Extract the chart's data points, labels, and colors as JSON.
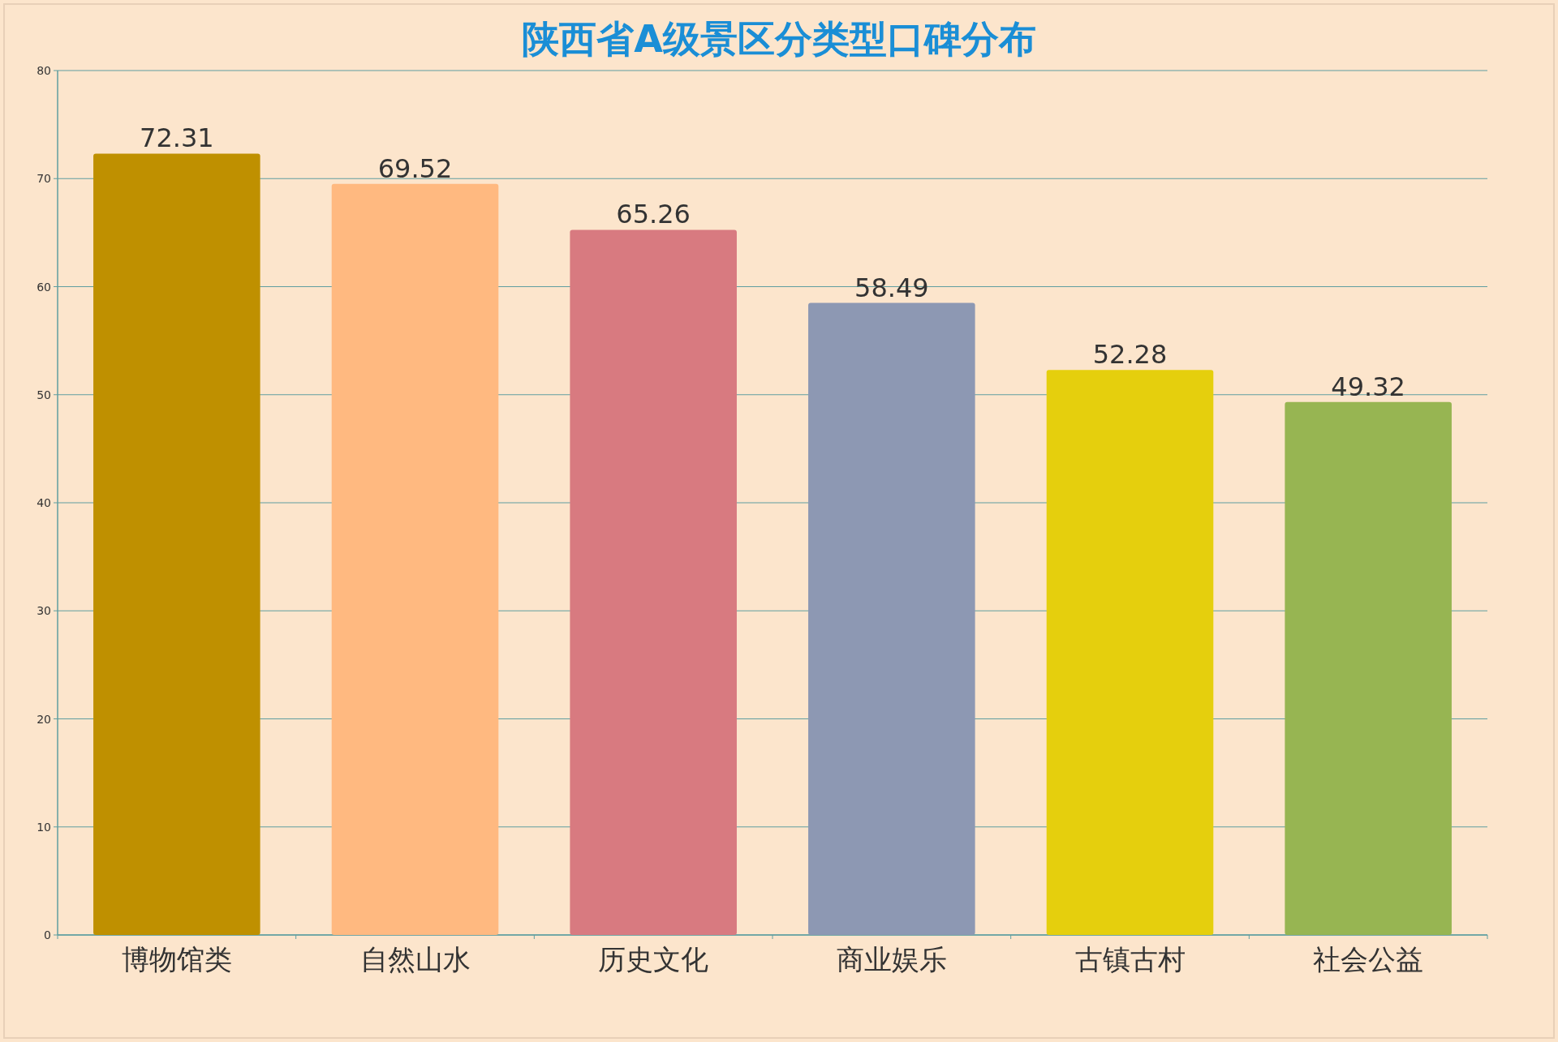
{
  "chart_data": {
    "type": "bar",
    "title": "陕西省A级景区分类型口碑分布",
    "categories": [
      "博物馆类",
      "自然山水",
      "历史文化",
      "商业娱乐",
      "古镇古村",
      "社会公益"
    ],
    "values": [
      72.31,
      69.52,
      65.26,
      58.49,
      52.28,
      49.32
    ],
    "colors": [
      "#bf9000",
      "#ffb980",
      "#d87a80",
      "#8d98b3",
      "#e5cf0d",
      "#97b552"
    ],
    "ylim": [
      0,
      80
    ],
    "yticks": [
      0,
      10,
      20,
      30,
      40,
      50,
      60,
      70,
      80
    ],
    "grid": "y",
    "data_labels": true
  }
}
